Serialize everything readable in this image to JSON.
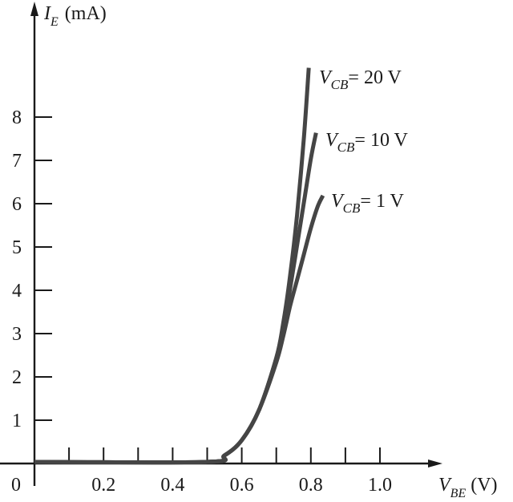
{
  "chart_data": {
    "type": "line",
    "title": "",
    "xlabel": "V_BE (V)",
    "ylabel": "I_E (mA)",
    "xlabel_parts": {
      "symbol": "V",
      "subscript": "BE",
      "unit": "(V)"
    },
    "ylabel_parts": {
      "symbol": "I",
      "subscript": "E",
      "unit": "(mA)"
    },
    "xlim": [
      0,
      1.1
    ],
    "ylim": [
      0,
      9.5
    ],
    "x_ticks": [
      0.1,
      0.2,
      0.3,
      0.4,
      0.5,
      0.6,
      0.7,
      0.8,
      0.9,
      1.0
    ],
    "x_tick_labels": [
      {
        "value": 0,
        "label": "0"
      },
      {
        "value": 0.2,
        "label": "0.2"
      },
      {
        "value": 0.4,
        "label": "0.4"
      },
      {
        "value": 0.6,
        "label": "0.6"
      },
      {
        "value": 0.8,
        "label": "0.8"
      },
      {
        "value": 1.0,
        "label": "1.0"
      }
    ],
    "y_ticks": [
      1,
      2,
      3,
      4,
      5,
      6,
      7,
      8
    ],
    "y_tick_labels": [
      "1",
      "2",
      "3",
      "4",
      "5",
      "6",
      "7",
      "8"
    ],
    "grid": false,
    "legend": "inline labels at curve ends",
    "series": [
      {
        "name": "V_CB = 20 V",
        "label_parts": {
          "symbol": "V",
          "subscript": "CB",
          "value": "= 20 V"
        },
        "x": [
          0.0,
          0.5,
          0.55,
          0.6,
          0.65,
          0.7,
          0.72,
          0.74,
          0.76,
          0.78,
          0.794
        ],
        "y": [
          0.0,
          0.0,
          0.15,
          0.5,
          1.2,
          2.4,
          3.2,
          4.3,
          5.7,
          7.5,
          9.1
        ]
      },
      {
        "name": "V_CB = 10 V",
        "label_parts": {
          "symbol": "V",
          "subscript": "CB",
          "value": "= 10 V"
        },
        "x": [
          0.0,
          0.5,
          0.55,
          0.6,
          0.65,
          0.7,
          0.72,
          0.74,
          0.76,
          0.78,
          0.8,
          0.815
        ],
        "y": [
          0.0,
          0.0,
          0.15,
          0.5,
          1.2,
          2.4,
          3.1,
          4.0,
          5.0,
          6.0,
          7.0,
          7.6
        ]
      },
      {
        "name": "V_CB = 1 V",
        "label_parts": {
          "symbol": "V",
          "subscript": "CB",
          "value": "= 1 V"
        },
        "x": [
          0.0,
          0.5,
          0.55,
          0.6,
          0.65,
          0.7,
          0.72,
          0.74,
          0.76,
          0.78,
          0.8,
          0.82,
          0.835
        ],
        "y": [
          0.0,
          0.0,
          0.15,
          0.5,
          1.2,
          2.3,
          2.9,
          3.6,
          4.2,
          4.8,
          5.4,
          5.9,
          6.15
        ]
      }
    ]
  },
  "style": {
    "curve_color": "#454545",
    "axis_color": "#1a1a1a",
    "background": "#ffffff"
  }
}
